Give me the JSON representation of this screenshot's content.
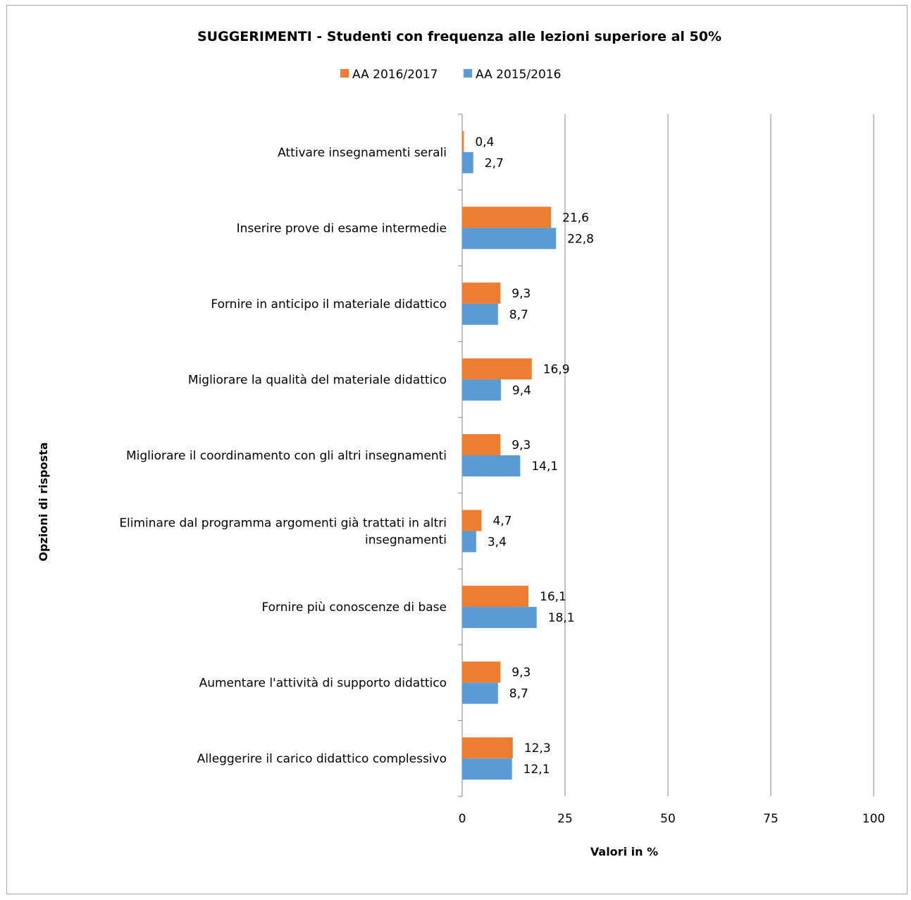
{
  "chart_data": {
    "type": "bar",
    "orientation": "horizontal",
    "title": "SUGGERIMENTI  - Studenti con frequenza alle lezioni superiore al 50%",
    "xlabel": "Valori in %",
    "ylabel": "Opzioni di risposta",
    "xlim": [
      0,
      100
    ],
    "xticks": [
      0,
      25,
      50,
      75,
      100
    ],
    "grid": "vertical",
    "legend_position": "top",
    "categories": [
      [
        "Attivare insegnamenti serali"
      ],
      [
        "Inserire prove di esame intermedie"
      ],
      [
        "Fornire in anticipo il materiale didattico"
      ],
      [
        "Migliorare la qualità del materiale didattico"
      ],
      [
        "Migliorare il coordinamento con gli altri insegnamenti"
      ],
      [
        "Eliminare dal programma argomenti già trattati in altri",
        "insegnamenti"
      ],
      [
        "Fornire più conoscenze di base"
      ],
      [
        "Aumentare l'attività di supporto didattico"
      ],
      [
        "Alleggerire il carico didattico complessivo"
      ]
    ],
    "series": [
      {
        "name": "AA 2016/2017",
        "color": "#ed7d31",
        "values": [
          0.4,
          21.6,
          9.3,
          16.9,
          9.3,
          4.7,
          16.1,
          9.3,
          12.3
        ],
        "labels": [
          "0,4",
          "21,6",
          "9,3",
          "16,9",
          "9,3",
          "4,7",
          "16,1",
          "9,3",
          "12,3"
        ]
      },
      {
        "name": "AA 2015/2016",
        "color": "#5b9bd5",
        "values": [
          2.7,
          22.8,
          8.7,
          9.4,
          14.1,
          3.4,
          18.1,
          8.7,
          12.1
        ],
        "labels": [
          "2,7",
          "22,8",
          "8,7",
          "9,4",
          "14,1",
          "3,4",
          "18,1",
          "8,7",
          "12,1"
        ]
      }
    ]
  }
}
